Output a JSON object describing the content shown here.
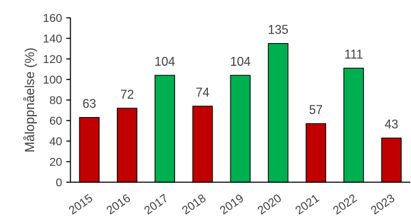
{
  "chart_data": {
    "type": "bar",
    "title": "",
    "xlabel": "",
    "ylabel": "Måloppnåelse (%)",
    "ylim": [
      0,
      160
    ],
    "yticks": [
      0,
      20,
      40,
      60,
      80,
      100,
      120,
      140,
      160
    ],
    "grid": false,
    "legend": "none",
    "categories": [
      "2015",
      "2016",
      "2017",
      "2018",
      "2019",
      "2020",
      "2021",
      "2022",
      "2023"
    ],
    "values": [
      63,
      72,
      104,
      74,
      104,
      135,
      57,
      111,
      43
    ],
    "bar_colors": [
      "#c00000",
      "#c00000",
      "#00b050",
      "#c00000",
      "#00b050",
      "#00b050",
      "#c00000",
      "#00b050",
      "#c00000"
    ],
    "bar_edge_color": "#000000"
  }
}
